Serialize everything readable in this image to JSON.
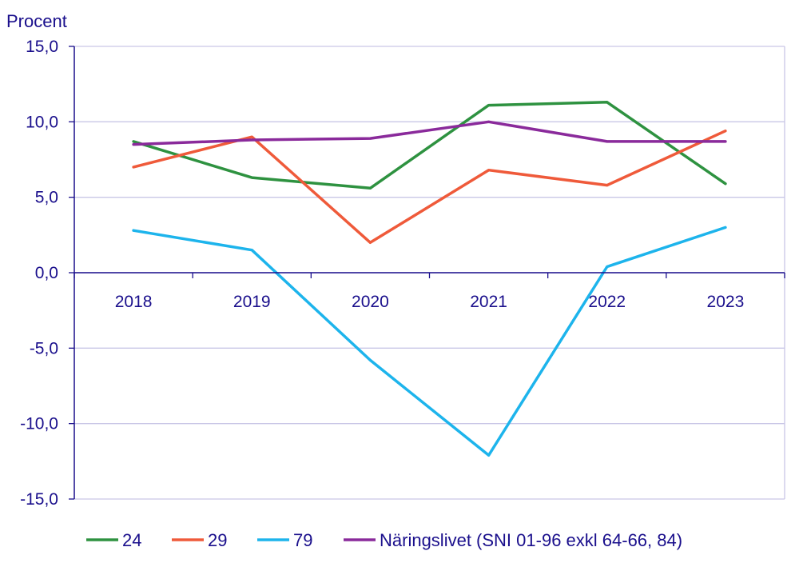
{
  "chart_data": {
    "type": "line",
    "title": "",
    "ylabel": "Procent",
    "xlabel": "",
    "ylim": [
      -15,
      15
    ],
    "yticks": [
      15,
      10,
      5,
      0,
      -5,
      -10,
      -15
    ],
    "ytick_labels": [
      "15,0",
      "10,0",
      "5,0",
      "0,0",
      "-5,0",
      "-10,0",
      "-15,0"
    ],
    "categories": [
      "2018",
      "2019",
      "2020",
      "2021",
      "2022",
      "2023"
    ],
    "grid": true,
    "legend_position": "bottom",
    "series": [
      {
        "name": "24",
        "color": "#2e9240",
        "values": [
          8.7,
          6.3,
          5.6,
          11.1,
          11.3,
          5.9
        ]
      },
      {
        "name": "29",
        "color": "#ef5a3a",
        "values": [
          7.0,
          9.0,
          2.0,
          6.8,
          5.8,
          9.4
        ]
      },
      {
        "name": "79",
        "color": "#1db4ec",
        "values": [
          2.8,
          1.5,
          -5.8,
          -12.1,
          0.4,
          3.0
        ]
      },
      {
        "name": "Näringslivet (SNI 01-96 exkl 64-66, 84)",
        "color": "#8a2a9b",
        "values": [
          8.5,
          8.8,
          8.9,
          10.0,
          8.7,
          8.7
        ]
      }
    ]
  }
}
